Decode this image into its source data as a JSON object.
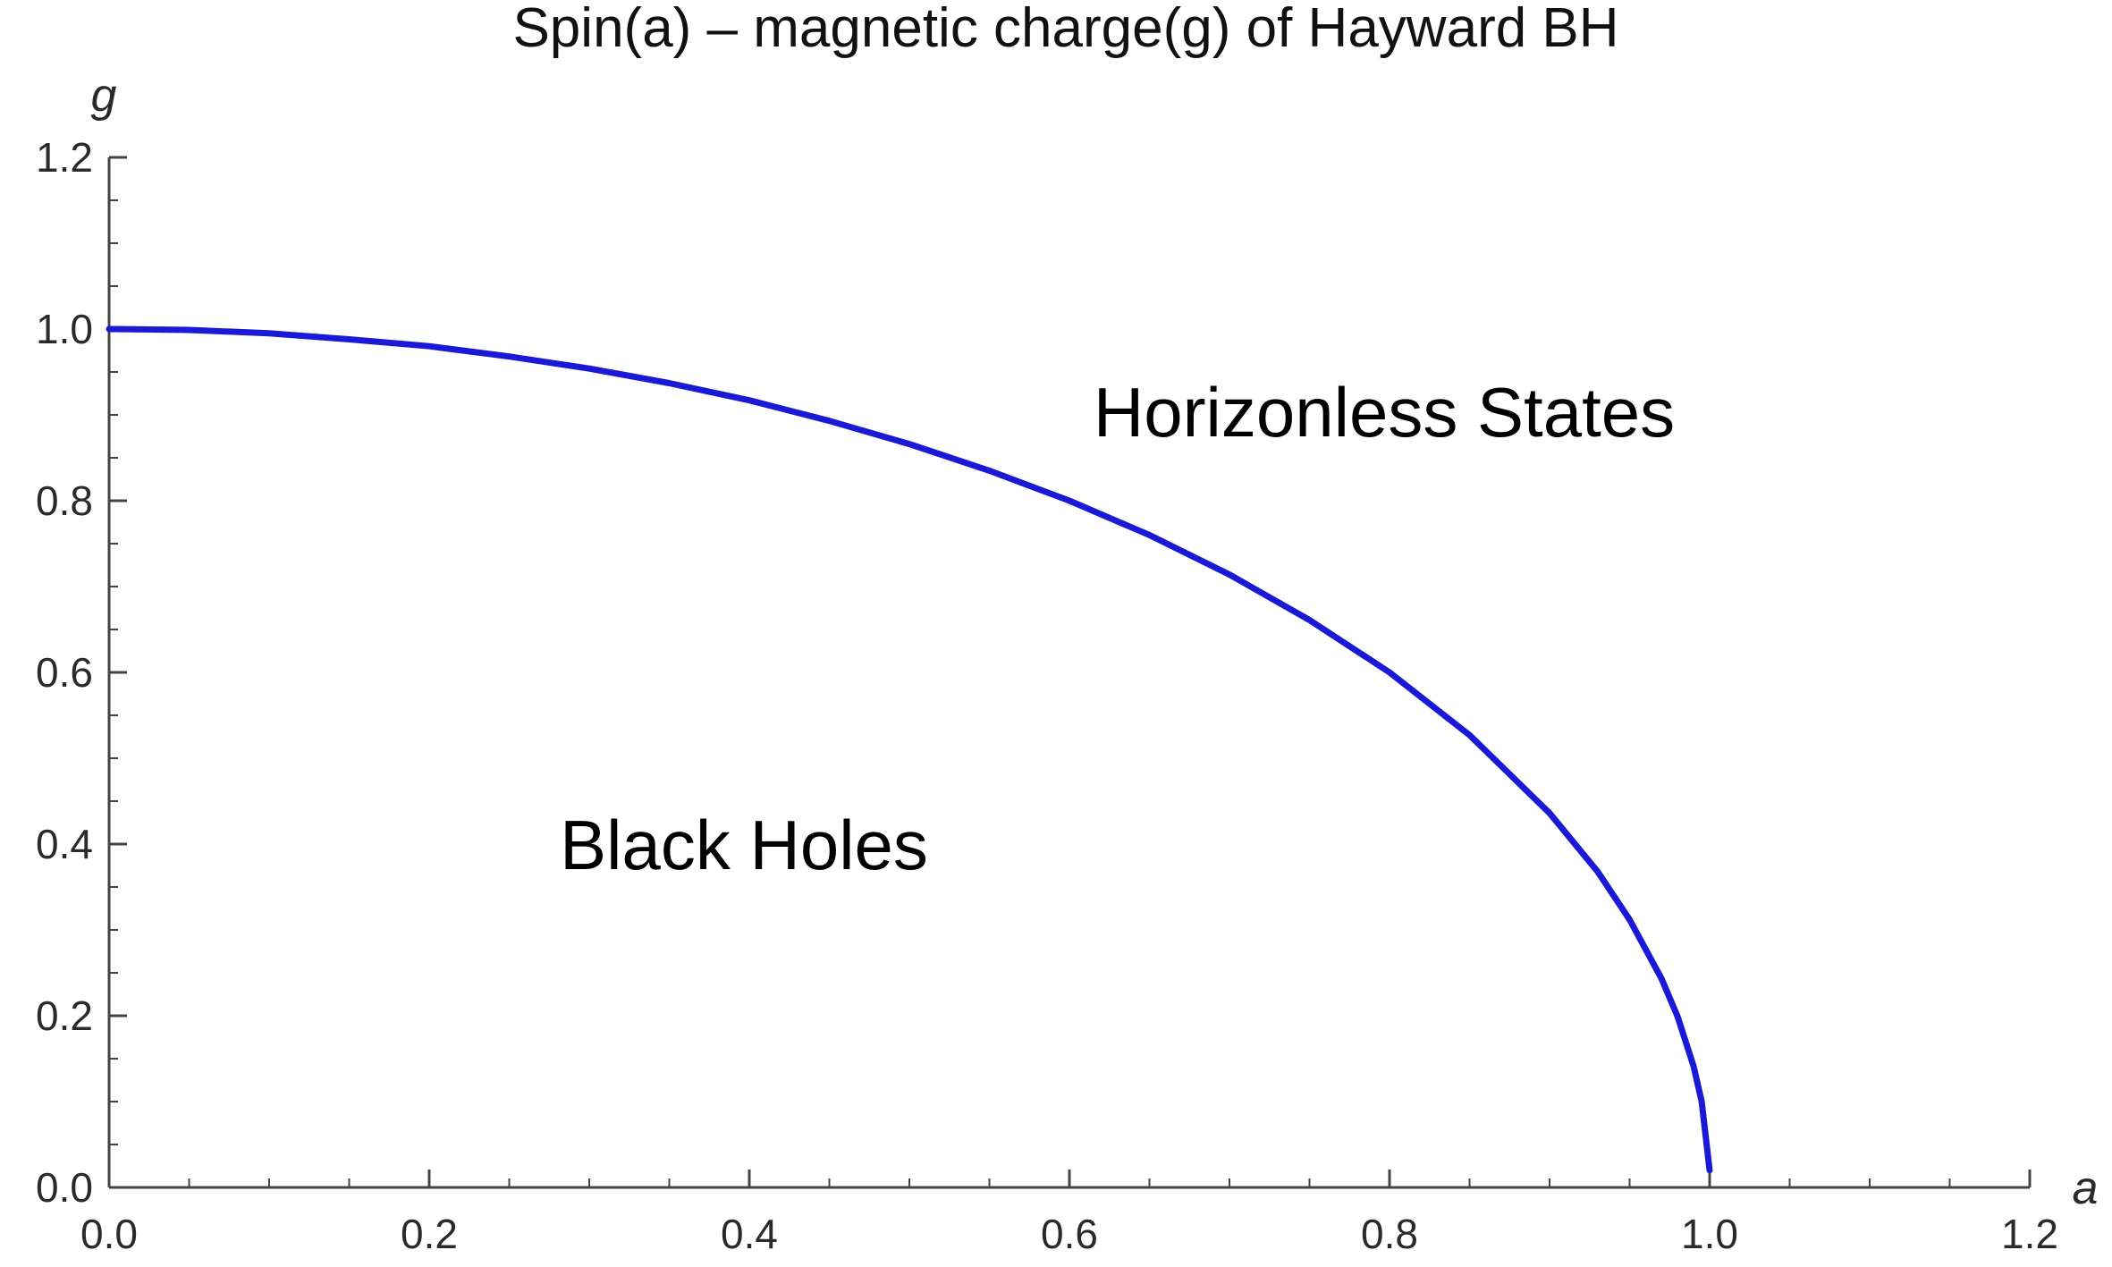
{
  "chart_data": {
    "type": "line",
    "title": "Spin(a) – magnetic charge(g) of Hayward BH",
    "xlabel": "a",
    "ylabel": "g",
    "xlim": [
      0.0,
      1.2
    ],
    "ylim": [
      0.0,
      1.2
    ],
    "x_ticks": [
      0.0,
      0.2,
      0.4,
      0.6,
      0.8,
      1.0,
      1.2
    ],
    "x_tick_labels": [
      "0.0",
      "0.2",
      "0.4",
      "0.6",
      "0.8",
      "1.0",
      "1.2"
    ],
    "y_ticks": [
      0.0,
      0.2,
      0.4,
      0.6,
      0.8,
      1.0,
      1.2
    ],
    "y_tick_labels": [
      "0.0",
      "0.2",
      "0.4",
      "0.6",
      "0.8",
      "1.0",
      "1.2"
    ],
    "grid": false,
    "series": [
      {
        "color": "#1a1ad6",
        "x": [
          0.0,
          0.05,
          0.1,
          0.15,
          0.2,
          0.25,
          0.3,
          0.35,
          0.4,
          0.45,
          0.5,
          0.55,
          0.6,
          0.65,
          0.7,
          0.75,
          0.8,
          0.85,
          0.9,
          0.93,
          0.95,
          0.97,
          0.98,
          0.99,
          0.995,
          1.0
        ],
        "y": [
          1.0,
          0.999,
          0.995,
          0.988,
          0.98,
          0.968,
          0.954,
          0.937,
          0.917,
          0.893,
          0.866,
          0.835,
          0.8,
          0.76,
          0.714,
          0.661,
          0.6,
          0.527,
          0.436,
          0.368,
          0.312,
          0.243,
          0.199,
          0.141,
          0.1,
          0.02
        ]
      }
    ],
    "annotations": [
      {
        "text": "Horizonless States",
        "x": 0.8,
        "y": 0.9
      },
      {
        "text": "Black Holes",
        "x": 0.4,
        "y": 0.4
      }
    ]
  }
}
